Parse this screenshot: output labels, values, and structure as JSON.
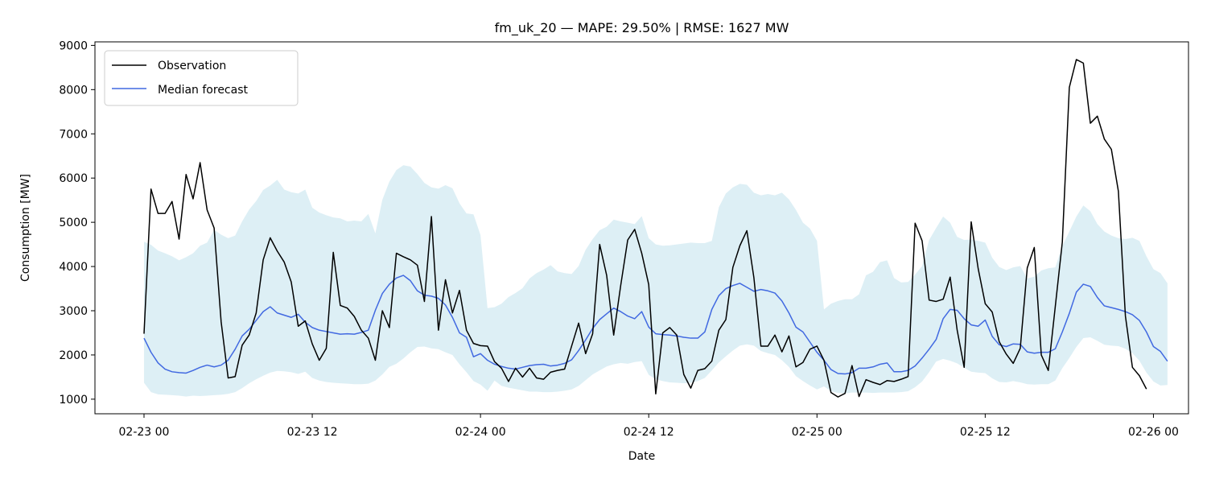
{
  "chart_data": {
    "type": "line",
    "title": "fm_uk_20 — MAPE: 29.50% | RMSE: 1627 MW",
    "xlabel": "Date",
    "ylabel": "Consumption [MW]",
    "x_start": "2023-02-23 00:00",
    "x_step_minutes": 30,
    "xlim": [
      "2023-02-22 20:30",
      "2023-02-26 02:30"
    ],
    "ylim": [
      670,
      9080
    ],
    "x_ticks": [
      {
        "value": "2023-02-23 00:00",
        "label": "02-23 00"
      },
      {
        "value": "2023-02-23 12:00",
        "label": "02-23 12"
      },
      {
        "value": "2023-02-24 00:00",
        "label": "02-24 00"
      },
      {
        "value": "2023-02-24 12:00",
        "label": "02-24 12"
      },
      {
        "value": "2023-02-25 00:00",
        "label": "02-25 00"
      },
      {
        "value": "2023-02-25 12:00",
        "label": "02-25 12"
      },
      {
        "value": "2023-02-26 00:00",
        "label": "02-26 00"
      }
    ],
    "y_ticks": [
      1000,
      2000,
      3000,
      4000,
      5000,
      6000,
      7000,
      8000,
      9000
    ],
    "grid": false,
    "legend_position": "top-left",
    "colors": {
      "observation": "#000000",
      "median": "#4169e1",
      "band": "#add8e6"
    },
    "series": [
      {
        "name": "Observation",
        "values": [
          2480,
          5750,
          5200,
          5200,
          5470,
          4620,
          6080,
          5530,
          6350,
          5280,
          4870,
          2750,
          1480,
          1510,
          2220,
          2450,
          2950,
          4150,
          4650,
          4350,
          4100,
          3650,
          2650,
          2770,
          2250,
          1880,
          2150,
          4320,
          3120,
          3060,
          2870,
          2560,
          2380,
          1880,
          3000,
          2620,
          4300,
          4220,
          4150,
          4030,
          3210,
          5130,
          2560,
          3700,
          2950,
          3460,
          2560,
          2260,
          2210,
          2200,
          1850,
          1700,
          1400,
          1700,
          1500,
          1700,
          1480,
          1450,
          1610,
          1650,
          1680,
          2200,
          2720,
          2030,
          2480,
          4500,
          3800,
          2450,
          3570,
          4600,
          4840,
          4300,
          3590,
          1120,
          2500,
          2620,
          2450,
          1560,
          1250,
          1650,
          1690,
          1860,
          2560,
          2800,
          3980,
          4470,
          4810,
          3750,
          2200,
          2200,
          2450,
          2070,
          2430,
          1730,
          1830,
          2130,
          2200,
          1880,
          1150,
          1050,
          1130,
          1760,
          1060,
          1440,
          1380,
          1330,
          1420,
          1400,
          1450,
          1510,
          4980,
          4580,
          3240,
          3210,
          3260,
          3760,
          2560,
          1720,
          5010,
          3950,
          3160,
          2970,
          2300,
          2020,
          1810,
          2150,
          3970,
          4430,
          2000,
          1650,
          3100,
          4550,
          8050,
          8680,
          8600,
          7240,
          7400,
          6880,
          6650,
          5700,
          2880,
          1720,
          1530,
          1230
        ]
      },
      {
        "name": "Median forecast",
        "values": [
          2380,
          2060,
          1820,
          1680,
          1620,
          1600,
          1590,
          1650,
          1720,
          1770,
          1730,
          1770,
          1880,
          2130,
          2430,
          2580,
          2780,
          2980,
          3090,
          2950,
          2900,
          2850,
          2920,
          2740,
          2620,
          2560,
          2530,
          2500,
          2470,
          2480,
          2470,
          2510,
          2560,
          3010,
          3390,
          3600,
          3740,
          3800,
          3680,
          3450,
          3350,
          3330,
          3280,
          3130,
          2850,
          2500,
          2400,
          1960,
          2030,
          1880,
          1790,
          1740,
          1700,
          1680,
          1720,
          1760,
          1780,
          1790,
          1750,
          1770,
          1810,
          1890,
          2100,
          2340,
          2600,
          2800,
          2930,
          3060,
          2980,
          2880,
          2820,
          2980,
          2630,
          2480,
          2460,
          2450,
          2430,
          2400,
          2380,
          2380,
          2520,
          3030,
          3340,
          3500,
          3570,
          3620,
          3530,
          3440,
          3480,
          3450,
          3400,
          3220,
          2950,
          2630,
          2520,
          2290,
          2060,
          1880,
          1670,
          1580,
          1570,
          1600,
          1700,
          1700,
          1730,
          1790,
          1820,
          1620,
          1620,
          1650,
          1750,
          1930,
          2130,
          2350,
          2820,
          3030,
          3010,
          2820,
          2680,
          2650,
          2790,
          2420,
          2230,
          2190,
          2250,
          2240,
          2070,
          2040,
          2060,
          2060,
          2140,
          2520,
          2940,
          3420,
          3600,
          3550,
          3300,
          3110,
          3070,
          3030,
          2980,
          2910,
          2780,
          2520,
          2190,
          2080,
          1860
        ]
      }
    ],
    "band": {
      "name": "Forecast interval",
      "upper": [
        4560,
        4490,
        4360,
        4300,
        4230,
        4140,
        4210,
        4300,
        4470,
        4540,
        4830,
        4720,
        4640,
        4700,
        5020,
        5290,
        5480,
        5730,
        5830,
        5960,
        5740,
        5680,
        5650,
        5740,
        5330,
        5220,
        5160,
        5110,
        5090,
        5020,
        5040,
        5020,
        5190,
        4750,
        5510,
        5920,
        6180,
        6290,
        6260,
        6090,
        5890,
        5790,
        5760,
        5840,
        5770,
        5430,
        5200,
        5180,
        4710,
        3060,
        3080,
        3160,
        3310,
        3400,
        3510,
        3730,
        3850,
        3930,
        4030,
        3890,
        3850,
        3830,
        4010,
        4380,
        4620,
        4820,
        4900,
        5060,
        5020,
        4990,
        4960,
        5140,
        4640,
        4500,
        4470,
        4480,
        4500,
        4520,
        4540,
        4530,
        4530,
        4580,
        5340,
        5650,
        5790,
        5870,
        5850,
        5670,
        5610,
        5640,
        5610,
        5670,
        5520,
        5280,
        4990,
        4860,
        4580,
        3030,
        3160,
        3220,
        3260,
        3260,
        3370,
        3800,
        3880,
        4100,
        4140,
        3740,
        3640,
        3650,
        3820,
        4010,
        4600,
        4870,
        5130,
        4990,
        4670,
        4600,
        4610,
        4580,
        4540,
        4200,
        3990,
        3920,
        3980,
        4010,
        3730,
        3770,
        3910,
        3960,
        3980,
        4460,
        4790,
        5130,
        5380,
        5250,
        4960,
        4790,
        4700,
        4640,
        4620,
        4650,
        4580,
        4230,
        3940,
        3850,
        3620
      ],
      "lower": [
        1370,
        1160,
        1110,
        1100,
        1090,
        1080,
        1060,
        1080,
        1070,
        1080,
        1090,
        1100,
        1120,
        1160,
        1250,
        1360,
        1450,
        1530,
        1600,
        1640,
        1630,
        1610,
        1570,
        1620,
        1480,
        1420,
        1390,
        1370,
        1360,
        1350,
        1340,
        1340,
        1350,
        1420,
        1560,
        1730,
        1800,
        1920,
        2060,
        2180,
        2190,
        2150,
        2130,
        2060,
        2000,
        1790,
        1610,
        1410,
        1330,
        1190,
        1420,
        1300,
        1260,
        1230,
        1200,
        1170,
        1170,
        1160,
        1160,
        1170,
        1190,
        1220,
        1300,
        1430,
        1560,
        1650,
        1740,
        1790,
        1820,
        1800,
        1840,
        1860,
        1550,
        1450,
        1410,
        1380,
        1370,
        1360,
        1370,
        1410,
        1480,
        1650,
        1830,
        1970,
        2100,
        2210,
        2240,
        2210,
        2090,
        2040,
        2000,
        1880,
        1730,
        1520,
        1410,
        1310,
        1220,
        1290,
        1180,
        1140,
        1130,
        1150,
        1150,
        1150,
        1140,
        1150,
        1150,
        1150,
        1160,
        1180,
        1270,
        1400,
        1610,
        1850,
        1910,
        1870,
        1810,
        1710,
        1620,
        1600,
        1590,
        1470,
        1390,
        1380,
        1410,
        1380,
        1340,
        1330,
        1340,
        1340,
        1420,
        1700,
        1930,
        2180,
        2380,
        2400,
        2320,
        2230,
        2210,
        2200,
        2140,
        2040,
        1870,
        1600,
        1400,
        1310,
        1320
      ]
    }
  }
}
